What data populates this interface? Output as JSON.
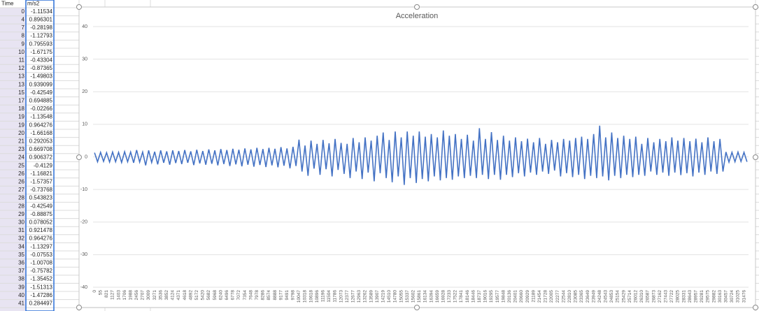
{
  "sheet": {
    "headers": [
      "Time",
      "m/s2"
    ],
    "rows": [
      [
        0,
        -1.11534
      ],
      [
        4,
        0.896301
      ],
      [
        7,
        -0.28198
      ],
      [
        8,
        -1.12793
      ],
      [
        9,
        0.795593
      ],
      [
        10,
        -1.67175
      ],
      [
        11,
        -0.43304
      ],
      [
        12,
        -0.87365
      ],
      [
        13,
        -1.49803
      ],
      [
        13,
        0.939099
      ],
      [
        15,
        -0.42549
      ],
      [
        17,
        0.694885
      ],
      [
        18,
        -0.02266
      ],
      [
        19,
        -1.13548
      ],
      [
        19,
        0.964276
      ],
      [
        20,
        -1.66168
      ],
      [
        21,
        0.292053
      ],
      [
        23,
        0.669708
      ],
      [
        24,
        0.906372
      ],
      [
        25,
        -0.4129
      ],
      [
        26,
        -1.16821
      ],
      [
        26,
        -1.57357
      ],
      [
        27,
        -0.73768
      ],
      [
        28,
        0.543823
      ],
      [
        28,
        -0.42549
      ],
      [
        29,
        -0.88875
      ],
      [
        30,
        0.078052
      ],
      [
        31,
        0.921478
      ],
      [
        32,
        0.964276
      ],
      [
        34,
        -1.13297
      ],
      [
        35,
        -0.07553
      ],
      [
        36,
        -1.00708
      ],
      [
        37,
        -0.75782
      ],
      [
        38,
        -1.35452
      ],
      [
        39,
        -1.51313
      ],
      [
        40,
        -1.47286
      ],
      [
        41,
        0.284497
      ]
    ]
  },
  "chart_data": {
    "type": "line",
    "title": "Acceleration",
    "color": "#4472c4",
    "grid": true,
    "ylim": [
      -40,
      40
    ],
    "yticks": [
      -40,
      -30,
      -20,
      -10,
      0,
      10,
      20,
      30,
      40
    ],
    "categories": [
      "0",
      null,
      "55",
      null,
      "821",
      null,
      "1127",
      null,
      "1403",
      null,
      "1706",
      null,
      "1988",
      null,
      "2456",
      null,
      "2707",
      null,
      "3009",
      null,
      "3271",
      null,
      "3536",
      null,
      "3852",
      null,
      "4124",
      null,
      "4371",
      null,
      "4618",
      null,
      "4892",
      null,
      "5172",
      null,
      "5420",
      null,
      "5682",
      null,
      "5968",
      null,
      "6240",
      null,
      "6496",
      null,
      "6778",
      null,
      "7072",
      null,
      "7354",
      null,
      "7648",
      null,
      "7978",
      null,
      "8286",
      null,
      "8574",
      null,
      "8888",
      null,
      "9177",
      null,
      "9491",
      null,
      "9798",
      null,
      "10047",
      null,
      "10318",
      null,
      "10618",
      null,
      "10896",
      null,
      "11196",
      null,
      "11504",
      null,
      "11786",
      null,
      "12073",
      null,
      "12377",
      null,
      "12677",
      null,
      "12963",
      null,
      "13262",
      null,
      "13589",
      null,
      "13907",
      null,
      "14219",
      null,
      "14510",
      null,
      "14780",
      null,
      "15055",
      null,
      "15337",
      null,
      "15602",
      null,
      "15861",
      null,
      "16134",
      null,
      "16394",
      null,
      "16659",
      null,
      "16928",
      null,
      "17233",
      null,
      "17522",
      null,
      "17841",
      null,
      "18146",
      null,
      "18446",
      null,
      "18737",
      null,
      "19016",
      null,
      "19295",
      null,
      "19577",
      null,
      "19848",
      null,
      "20136",
      null,
      "20401",
      null,
      "20660",
      null,
      "20929",
      null,
      "21189",
      null,
      "21454",
      null,
      "21728",
      null,
      "22005",
      null,
      "22277",
      null,
      "22544",
      null,
      "22810",
      null,
      "23085",
      null,
      "23365",
      null,
      "23649",
      null,
      "23949",
      null,
      "24248",
      null,
      "24543",
      null,
      "24853",
      null,
      "25154",
      null,
      "25429",
      null,
      "25714",
      null,
      "26012",
      null,
      "26310",
      null,
      "26587",
      null,
      "26873",
      null,
      "27162",
      null,
      "27443",
      null,
      "27722",
      null,
      "28025",
      null,
      "28331",
      null,
      "28643",
      null,
      "28957",
      null,
      "29281",
      null,
      "29575",
      null,
      "29882",
      null,
      "30163",
      null,
      "30457",
      null,
      "30724",
      null,
      "31025",
      null,
      "31476",
      null
    ],
    "values": [
      1.3,
      -1.5,
      1.4,
      -1.4,
      1.3,
      -1.6,
      1.5,
      -1.5,
      1.4,
      -1.7,
      1.6,
      -1.5,
      1.5,
      -1.8,
      2.1,
      -1.6,
      1.5,
      -2.6,
      2.0,
      -1.7,
      1.6,
      -2.3,
      2.0,
      -1.8,
      1.7,
      -2.4,
      2.0,
      -1.9,
      1.8,
      -2.2,
      2.1,
      -1.8,
      1.7,
      -2.5,
      2.2,
      -2.0,
      1.8,
      -2.4,
      2.3,
      -2.1,
      2.0,
      -2.6,
      2.4,
      -2.2,
      2.1,
      -2.8,
      2.5,
      -2.3,
      2.2,
      -2.9,
      2.6,
      -2.4,
      2.3,
      -3.0,
      2.8,
      -2.5,
      2.4,
      -3.1,
      2.8,
      -2.6,
      2.5,
      -3.2,
      3.0,
      -2.7,
      2.6,
      -3.5,
      3.1,
      -2.8,
      5.3,
      -4.5,
      3.5,
      -5.8,
      5.0,
      -3.6,
      4.0,
      -5.5,
      5.2,
      -3.8,
      4.2,
      -6.0,
      5.5,
      -4.0,
      4.3,
      -5.2,
      4.0,
      -6.5,
      5.8,
      -4.5,
      4.5,
      -6.8,
      6.0,
      -4.8,
      5.0,
      -7.5,
      6.5,
      -5.0,
      7.5,
      -6.5,
      5.2,
      -7.8,
      7.8,
      -6.0,
      6.0,
      -8.6,
      7.8,
      -6.5,
      6.5,
      -8.0,
      7.8,
      -6.8,
      6.2,
      -7.5,
      7.0,
      -6.0,
      6.0,
      -7.2,
      8.1,
      -6.5,
      6.5,
      -7.0,
      7.0,
      -6.0,
      5.5,
      -6.5,
      6.8,
      -5.8,
      5.0,
      -6.5,
      8.8,
      -5.5,
      5.5,
      -6.8,
      7.6,
      -5.5,
      5.2,
      -7.0,
      6.5,
      -5.5,
      5.0,
      -6.2,
      6.0,
      -5.0,
      4.8,
      -6.0,
      5.6,
      -4.8,
      4.5,
      -5.5,
      5.8,
      -4.5,
      4.0,
      -5.2,
      5.2,
      -4.2,
      4.5,
      -6.0,
      5.5,
      -5.0,
      5.0,
      -6.2,
      5.8,
      -5.5,
      6.2,
      -6.8,
      5.5,
      -5.8,
      7.0,
      -6.5,
      9.6,
      -6.0,
      6.0,
      -7.2,
      7.5,
      -5.8,
      5.8,
      -6.5,
      6.5,
      -5.5,
      5.5,
      -6.2,
      6.2,
      -5.5,
      4.0,
      -5.8,
      5.8,
      -4.5,
      4.5,
      -5.5,
      5.5,
      -4.8,
      4.8,
      -5.8,
      6.0,
      -4.8,
      5.0,
      -5.6,
      5.8,
      -5.0,
      4.8,
      -6.0,
      5.6,
      -4.8,
      4.5,
      -5.5,
      6.0,
      -4.5,
      4.8,
      -5.2,
      5.5,
      -4.5,
      1.5,
      -1.6,
      1.4,
      -1.5,
      1.5,
      -1.4,
      1.4,
      -1.5
    ]
  }
}
